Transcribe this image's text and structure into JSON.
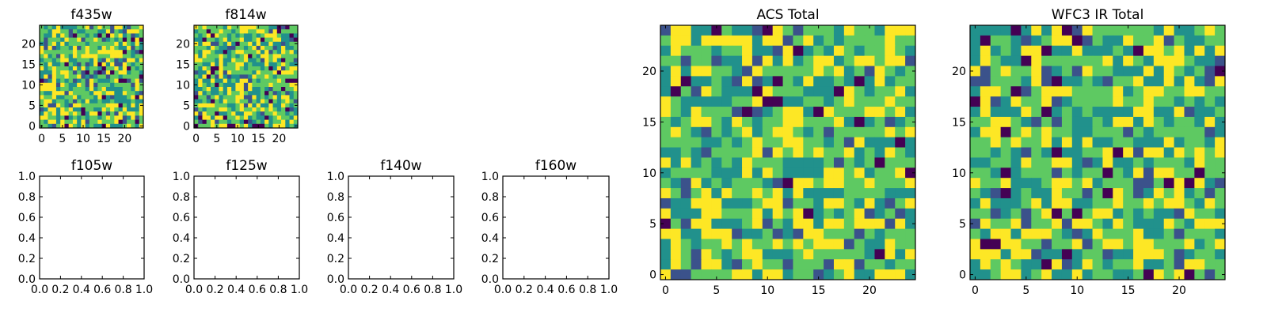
{
  "chart_data": [
    {
      "type": "heatmap",
      "title": "f435w",
      "grid_size": 25,
      "x_ticks": [
        "0",
        "5",
        "10",
        "15",
        "20"
      ],
      "y_ticks": [
        "0",
        "5",
        "10",
        "15",
        "20"
      ],
      "xlim": [
        -0.5,
        24.5
      ],
      "ylim": [
        -0.5,
        24.5
      ],
      "colormap": [
        "#440154",
        "#3b528b",
        "#21918c",
        "#5ec962",
        "#fde725"
      ],
      "values_note": "random-noise pixel image"
    },
    {
      "type": "heatmap",
      "title": "f814w",
      "grid_size": 25,
      "x_ticks": [
        "0",
        "5",
        "10",
        "15",
        "20"
      ],
      "y_ticks": [
        "0",
        "5",
        "10",
        "15",
        "20"
      ],
      "xlim": [
        -0.5,
        24.5
      ],
      "ylim": [
        -0.5,
        24.5
      ],
      "colormap": [
        "#440154",
        "#3b528b",
        "#21918c",
        "#5ec962",
        "#fde725"
      ],
      "values_note": "random-noise pixel image"
    },
    {
      "type": "empty",
      "title": "f105w",
      "x_ticks": [
        "0.0",
        "0.2",
        "0.4",
        "0.6",
        "0.8",
        "1.0"
      ],
      "y_ticks": [
        "0.0",
        "0.2",
        "0.4",
        "0.6",
        "0.8",
        "1.0"
      ],
      "xlim": [
        0,
        1
      ],
      "ylim": [
        0,
        1
      ]
    },
    {
      "type": "empty",
      "title": "f125w",
      "x_ticks": [
        "0.0",
        "0.2",
        "0.4",
        "0.6",
        "0.8",
        "1.0"
      ],
      "y_ticks": [
        "0.0",
        "0.2",
        "0.4",
        "0.6",
        "0.8",
        "1.0"
      ],
      "xlim": [
        0,
        1
      ],
      "ylim": [
        0,
        1
      ]
    },
    {
      "type": "empty",
      "title": "f140w",
      "x_ticks": [
        "0.0",
        "0.2",
        "0.4",
        "0.6",
        "0.8",
        "1.0"
      ],
      "y_ticks": [
        "0.0",
        "0.2",
        "0.4",
        "0.6",
        "0.8",
        "1.0"
      ],
      "xlim": [
        0,
        1
      ],
      "ylim": [
        0,
        1
      ]
    },
    {
      "type": "empty",
      "title": "f160w",
      "x_ticks": [
        "0.0",
        "0.2",
        "0.4",
        "0.6",
        "0.8",
        "1.0"
      ],
      "y_ticks": [
        "0.0",
        "0.2",
        "0.4",
        "0.6",
        "0.8",
        "1.0"
      ],
      "xlim": [
        0,
        1
      ],
      "ylim": [
        0,
        1
      ]
    },
    {
      "type": "heatmap",
      "title": "ACS Total",
      "grid_size": 25,
      "x_ticks": [
        "0",
        "5",
        "10",
        "15",
        "20"
      ],
      "y_ticks": [
        "0",
        "5",
        "10",
        "15",
        "20"
      ],
      "xlim": [
        -0.5,
        24.5
      ],
      "ylim": [
        -0.5,
        24.5
      ],
      "colormap": [
        "#440154",
        "#3b528b",
        "#21918c",
        "#5ec962",
        "#fde725"
      ],
      "values_note": "random-noise pixel image"
    },
    {
      "type": "heatmap",
      "title": "WFC3 IR Total",
      "grid_size": 25,
      "x_ticks": [
        "0",
        "5",
        "10",
        "15",
        "20"
      ],
      "y_ticks": [
        "0",
        "5",
        "10",
        "15",
        "20"
      ],
      "xlim": [
        -0.5,
        24.5
      ],
      "ylim": [
        -0.5,
        24.5
      ],
      "colormap": [
        "#440154",
        "#3b528b",
        "#21918c",
        "#5ec962",
        "#fde725"
      ],
      "values_note": "random-noise pixel image"
    }
  ]
}
